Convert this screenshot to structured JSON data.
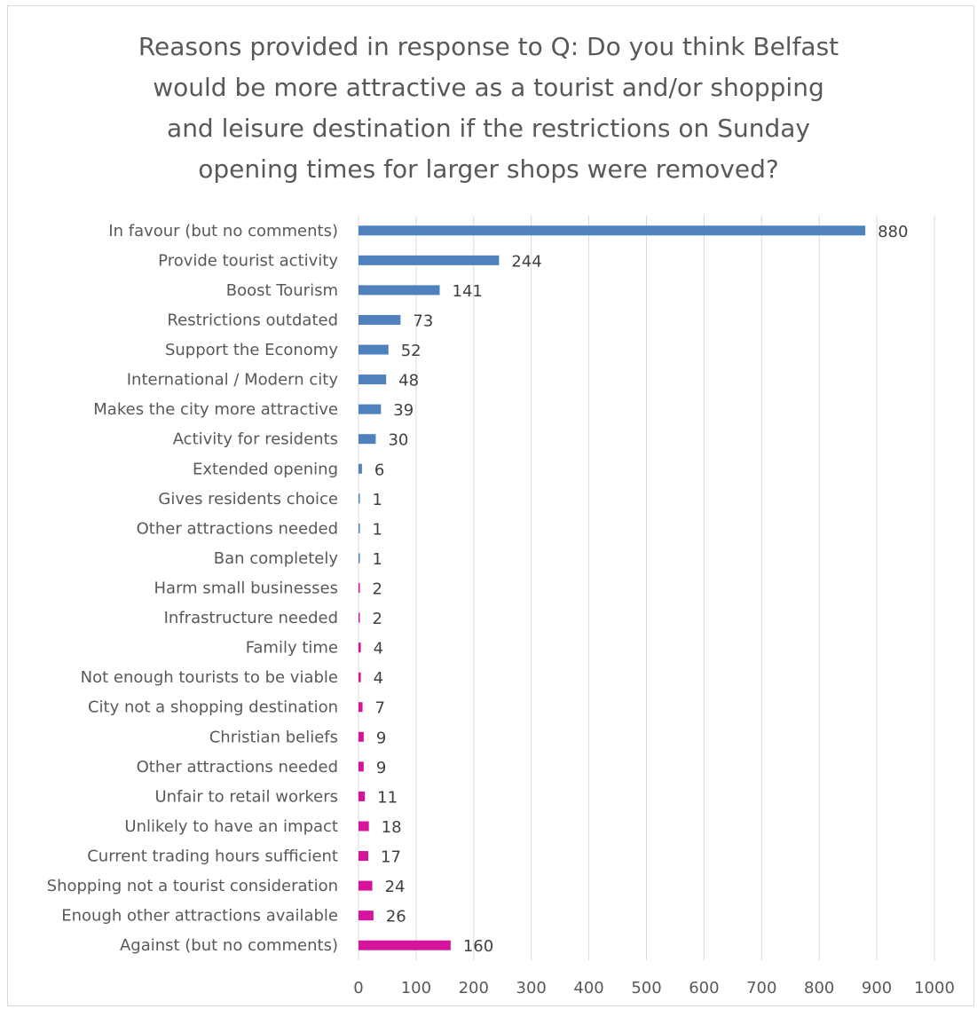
{
  "chart_data": {
    "type": "bar",
    "orientation": "horizontal",
    "title": "Reasons provided in response to Q: Do you think Belfast\nwould be more attractive as a tourist and/or shopping\nand leisure destination if the restrictions on Sunday\nopening times for larger shops were removed?",
    "xlim": [
      0,
      1000
    ],
    "x_ticks": [
      0,
      100,
      200,
      300,
      400,
      500,
      600,
      700,
      800,
      900,
      1000
    ],
    "grid": true,
    "legend": "none",
    "colors": {
      "in_favour": "#4f81bd",
      "against": "#d5149b"
    },
    "categories": [
      "In favour (but no comments)",
      "Provide tourist activity",
      "Boost Tourism",
      "Restrictions outdated",
      "Support the Economy",
      "International / Modern city",
      "Makes the city more attractive",
      "Activity for residents",
      "Extended opening",
      "Gives residents choice",
      "Other attractions needed",
      "Ban completely",
      "Harm small businesses",
      "Infrastructure needed",
      "Family time",
      "Not enough tourists to be viable",
      "City not a shopping destination",
      "Christian beliefs",
      "Other attractions needed",
      "Unfair to retail workers",
      "Unlikely to have an impact",
      "Current trading hours sufficient",
      "Shopping not a tourist consideration",
      "Enough other attractions available",
      "Against (but no comments)"
    ],
    "values": [
      880,
      244,
      141,
      73,
      52,
      48,
      39,
      30,
      6,
      1,
      1,
      1,
      2,
      2,
      4,
      4,
      7,
      9,
      9,
      11,
      18,
      17,
      24,
      26,
      160
    ],
    "groups": [
      "in_favour",
      "in_favour",
      "in_favour",
      "in_favour",
      "in_favour",
      "in_favour",
      "in_favour",
      "in_favour",
      "in_favour",
      "in_favour",
      "in_favour",
      "in_favour",
      "against",
      "against",
      "against",
      "against",
      "against",
      "against",
      "against",
      "against",
      "against",
      "against",
      "against",
      "against",
      "against"
    ]
  }
}
